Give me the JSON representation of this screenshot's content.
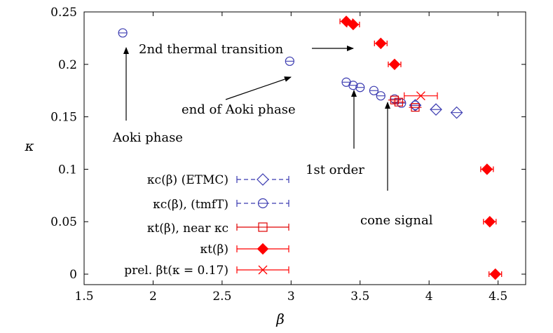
{
  "chart_data": {
    "type": "scatter",
    "xlabel": "β",
    "ylabel": "κ",
    "xlim": [
      1.5,
      4.7
    ],
    "ylim": [
      -0.01,
      0.25
    ],
    "xticks": [
      "1.5",
      "2",
      "2.5",
      "3",
      "3.5",
      "4",
      "4.5"
    ],
    "yticks": [
      "0",
      "0.05",
      "0.1",
      "0.15",
      "0.2",
      "0.25"
    ],
    "legend_position": "bottom-left",
    "series": [
      {
        "name": "κc(β) (ETMC)",
        "marker": "diamond",
        "color": "#3a3ab0",
        "points": [
          [
            3.9,
            0.161
          ],
          [
            4.05,
            0.157
          ],
          [
            4.2,
            0.154
          ]
        ]
      },
      {
        "name": "κc(β), (tmfT)",
        "marker": "circle",
        "color": "#3a3ab0",
        "points": [
          [
            1.78,
            0.23
          ],
          [
            2.99,
            0.203
          ],
          [
            3.4,
            0.183
          ],
          [
            3.45,
            0.18
          ],
          [
            3.5,
            0.178
          ],
          [
            3.6,
            0.175
          ],
          [
            3.65,
            0.17
          ],
          [
            3.75,
            0.167
          ],
          [
            3.8,
            0.163
          ],
          [
            3.9,
            0.161
          ]
        ]
      },
      {
        "name": "κt(β), near κc",
        "marker": "square",
        "color": "#e00000",
        "points": [
          [
            3.75,
            0.166
          ],
          [
            3.78,
            0.164
          ],
          [
            3.9,
            0.159
          ]
        ]
      },
      {
        "name": "κt(β)",
        "marker": "filled-diamond",
        "color": "#ff0000",
        "points": [
          [
            3.4,
            0.241
          ],
          [
            3.45,
            0.238
          ],
          [
            3.65,
            0.22
          ],
          [
            3.75,
            0.2
          ],
          [
            4.42,
            0.1
          ],
          [
            4.44,
            0.05
          ],
          [
            4.48,
            0.0
          ]
        ]
      },
      {
        "name": "prel. βt(κ = 0.17)",
        "marker": "cross",
        "color": "#ff0000",
        "points": [
          [
            3.94,
            0.17
          ]
        ]
      }
    ],
    "annotations": [
      {
        "text": "Aoki phase",
        "x": 1.6,
        "y": 0.13
      },
      {
        "text": "2nd thermal transition",
        "x": 2.0,
        "y": 0.218
      },
      {
        "text": "end of Aoki phase",
        "x": 2.3,
        "y": 0.148
      },
      {
        "text": "1st order",
        "x": 3.28,
        "y": 0.096
      },
      {
        "text": "cone signal",
        "x": 3.9,
        "y": 0.048
      }
    ]
  }
}
